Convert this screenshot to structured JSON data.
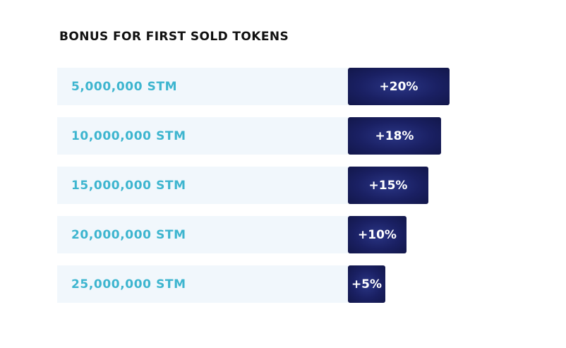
{
  "header": {
    "title": "BONUS FOR FIRST SOLD TOKENS"
  },
  "colors": {
    "label_bg": "#f1f7fc",
    "label_text": "#3db5cf",
    "bar": "#1a2063",
    "bar_text": "#ffffff"
  },
  "chart_data": {
    "type": "bar",
    "orientation": "horizontal",
    "title": "BONUS FOR FIRST SOLD TOKENS",
    "categories": [
      "5,000,000 STM",
      "10,000,000 STM",
      "15,000,000 STM",
      "20,000,000 STM",
      "25,000,000 STM"
    ],
    "values": [
      20,
      18,
      15,
      10,
      5
    ],
    "value_labels": [
      "+20%",
      "+18%",
      "+15%",
      "+10%",
      "+5%"
    ],
    "unit": "%",
    "xlim": [
      0,
      20
    ]
  }
}
